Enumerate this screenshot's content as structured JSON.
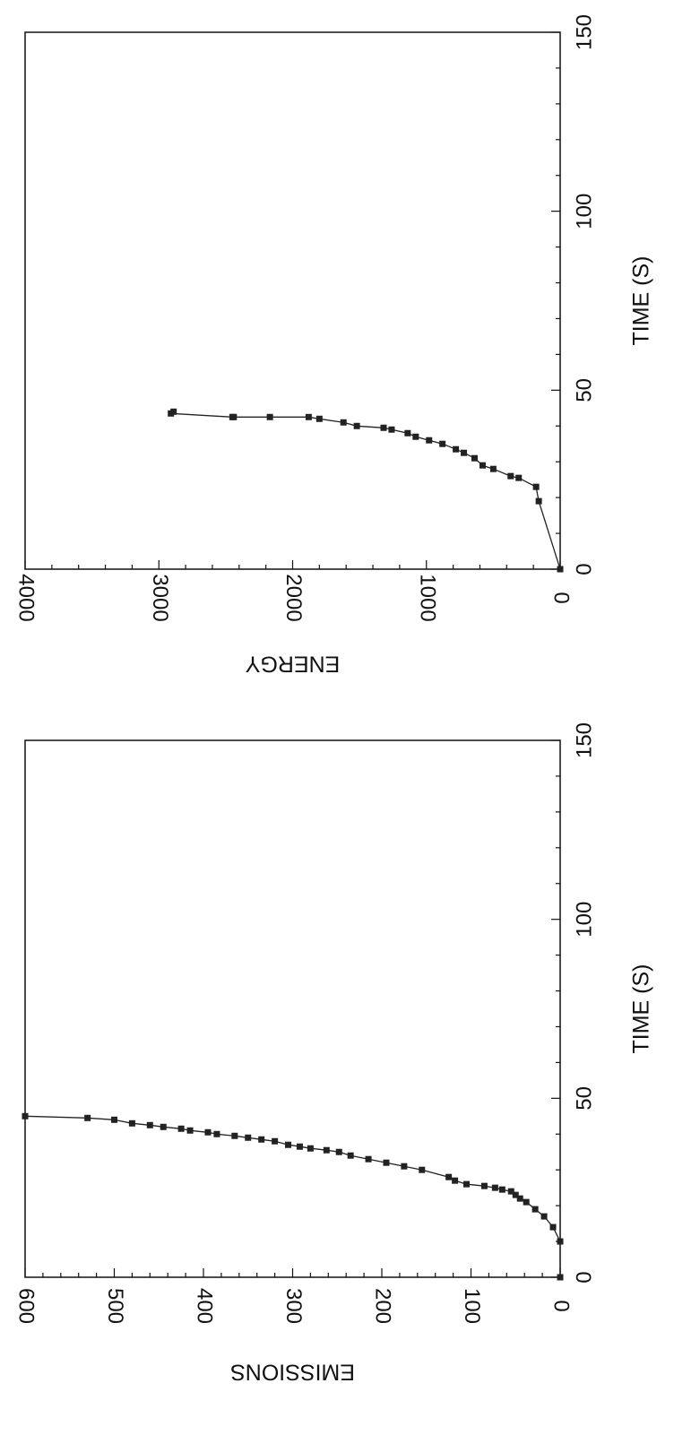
{
  "chart_data": [
    {
      "id": "emissions",
      "type": "line",
      "title": "",
      "xlabel": "TIME (S)",
      "ylabel": "EMISSIONS",
      "xlim": [
        0,
        150
      ],
      "ylim": [
        0,
        600
      ],
      "xticks": [
        0,
        50,
        100,
        150
      ],
      "yticks": [
        0,
        100,
        200,
        300,
        400,
        500,
        600
      ],
      "grid": false,
      "legend": "none",
      "orientation": "rotated 90 degrees clockwise",
      "series": [
        {
          "marker": "square",
          "x": [
            0,
            10,
            14,
            17,
            19,
            21,
            22,
            23,
            24,
            24.5,
            25,
            25.5,
            26,
            27,
            28,
            30,
            31,
            32,
            33,
            34,
            35,
            35.5,
            36,
            36.5,
            37,
            38,
            38.5,
            39,
            39.5,
            40,
            40.5,
            41,
            41.5,
            42,
            42.5,
            43,
            44,
            44.5,
            45
          ],
          "y": [
            0,
            0,
            8,
            18,
            28,
            38,
            45,
            50,
            55,
            65,
            73,
            85,
            105,
            118,
            125,
            155,
            175,
            195,
            215,
            235,
            248,
            262,
            280,
            292,
            305,
            320,
            335,
            350,
            365,
            385,
            395,
            415,
            425,
            445,
            460,
            480,
            500,
            530,
            600
          ]
        }
      ]
    },
    {
      "id": "energy",
      "type": "line",
      "title": "",
      "xlabel": "TIME (S)",
      "ylabel": "ENERGY",
      "xlim": [
        0,
        150
      ],
      "ylim": [
        0,
        4000
      ],
      "xticks": [
        0,
        50,
        100,
        150
      ],
      "yticks": [
        0,
        1000,
        2000,
        3000,
        4000
      ],
      "grid": false,
      "legend": "none",
      "orientation": "rotated 90 degrees clockwise",
      "series": [
        {
          "marker": "square",
          "x": [
            0,
            19,
            23,
            25.5,
            26,
            28,
            29,
            31,
            32.5,
            33.5,
            35,
            36,
            37,
            38,
            39,
            39.5,
            40,
            41,
            42,
            42.5,
            42.5,
            42.5,
            42.5,
            43.5,
            44
          ],
          "y": [
            0,
            160,
            180,
            310,
            370,
            500,
            580,
            640,
            720,
            780,
            880,
            980,
            1080,
            1140,
            1260,
            1320,
            1520,
            1620,
            1800,
            1880,
            2170,
            2440,
            2450,
            2910,
            2890
          ]
        }
      ]
    }
  ]
}
